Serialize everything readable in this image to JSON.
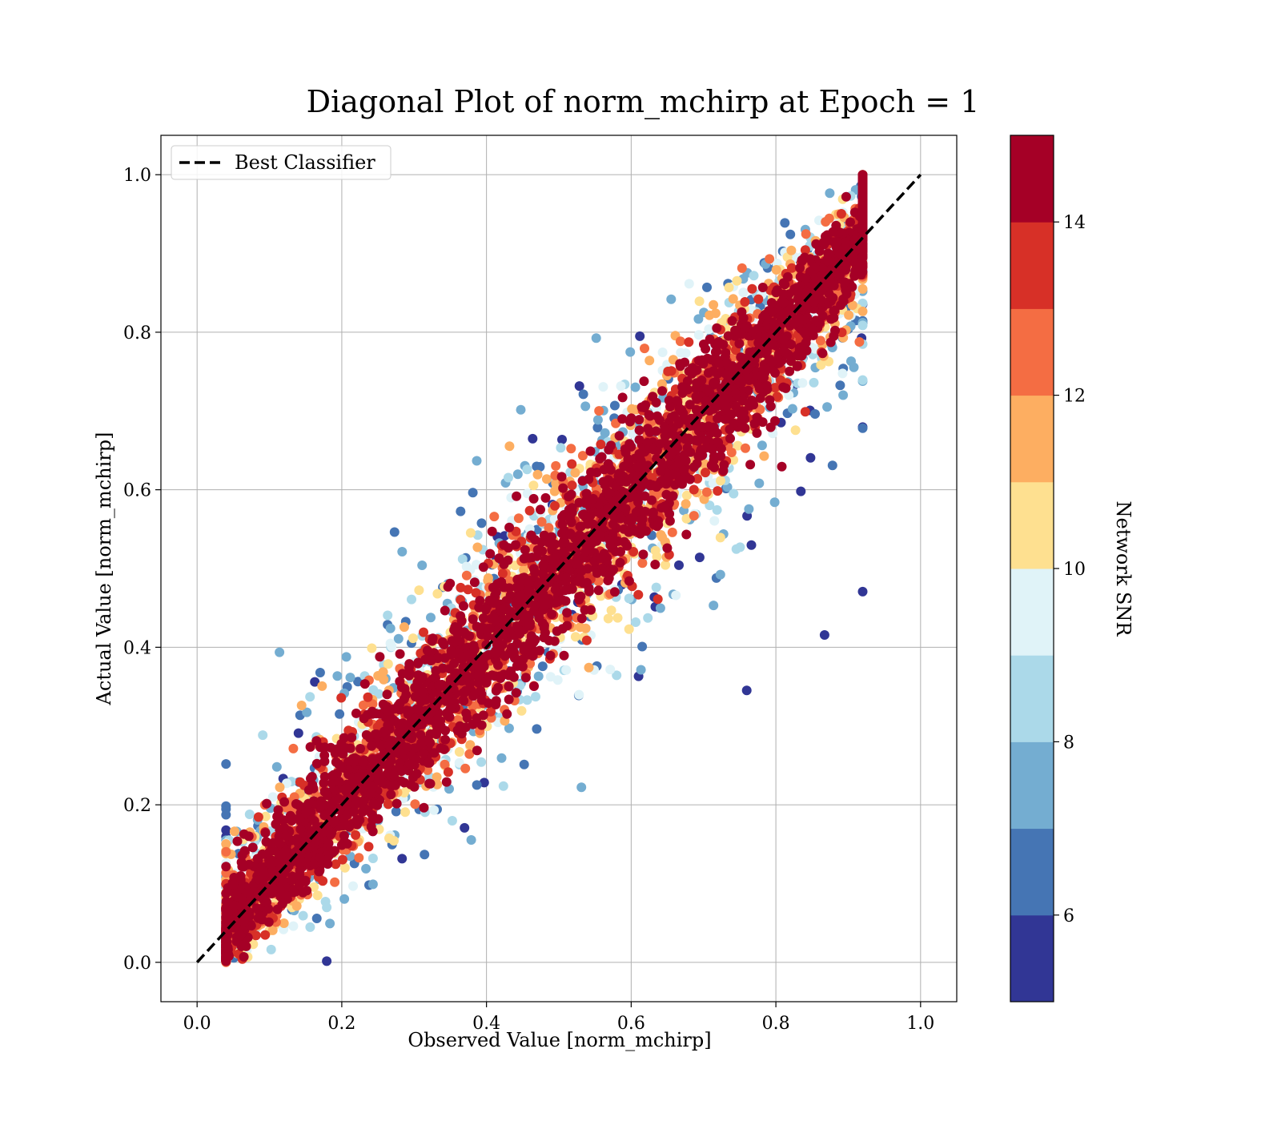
{
  "chart_data": {
    "type": "scatter",
    "title": "Diagonal Plot of norm_mchirp at Epoch = 1",
    "xlabel": "Observed Value [norm_mchirp]",
    "ylabel": "Actual Value [norm_mchirp]",
    "xlim": [
      -0.05,
      1.05
    ],
    "ylim": [
      -0.05,
      1.05
    ],
    "xticks": [
      "0.0",
      "0.2",
      "0.4",
      "0.6",
      "0.8",
      "1.0"
    ],
    "yticks": [
      "0.0",
      "0.2",
      "0.4",
      "0.6",
      "0.8",
      "1.0"
    ],
    "grid": true,
    "reference_line": {
      "name": "Best Classifier",
      "style": "dashed",
      "color": "#000000",
      "x": [
        0.0,
        1.0
      ],
      "y": [
        0.0,
        1.0
      ]
    },
    "legend": {
      "position": "top-left",
      "entries": [
        "Best Classifier"
      ]
    },
    "colorbar": {
      "label": "Network SNR",
      "min": 5,
      "max": 15,
      "ticks": [
        "6",
        "8",
        "10",
        "12",
        "14"
      ],
      "tick_values": [
        6,
        8,
        10,
        12,
        14
      ],
      "bins": [
        5,
        6,
        7,
        8,
        9,
        10,
        11,
        12,
        13,
        14,
        15
      ],
      "colors": [
        "#313695",
        "#4575b4",
        "#74add1",
        "#abd9e9",
        "#e0f3f8",
        "#fee090",
        "#fdae61",
        "#f46d43",
        "#d73027",
        "#a50026"
      ]
    },
    "point_distribution": {
      "observed_range": [
        0.04,
        0.92
      ],
      "actual_range": [
        0.0,
        1.0
      ],
      "high_snr_band_around_diagonal": true,
      "low_snr_spread_off_diagonal": true
    }
  }
}
